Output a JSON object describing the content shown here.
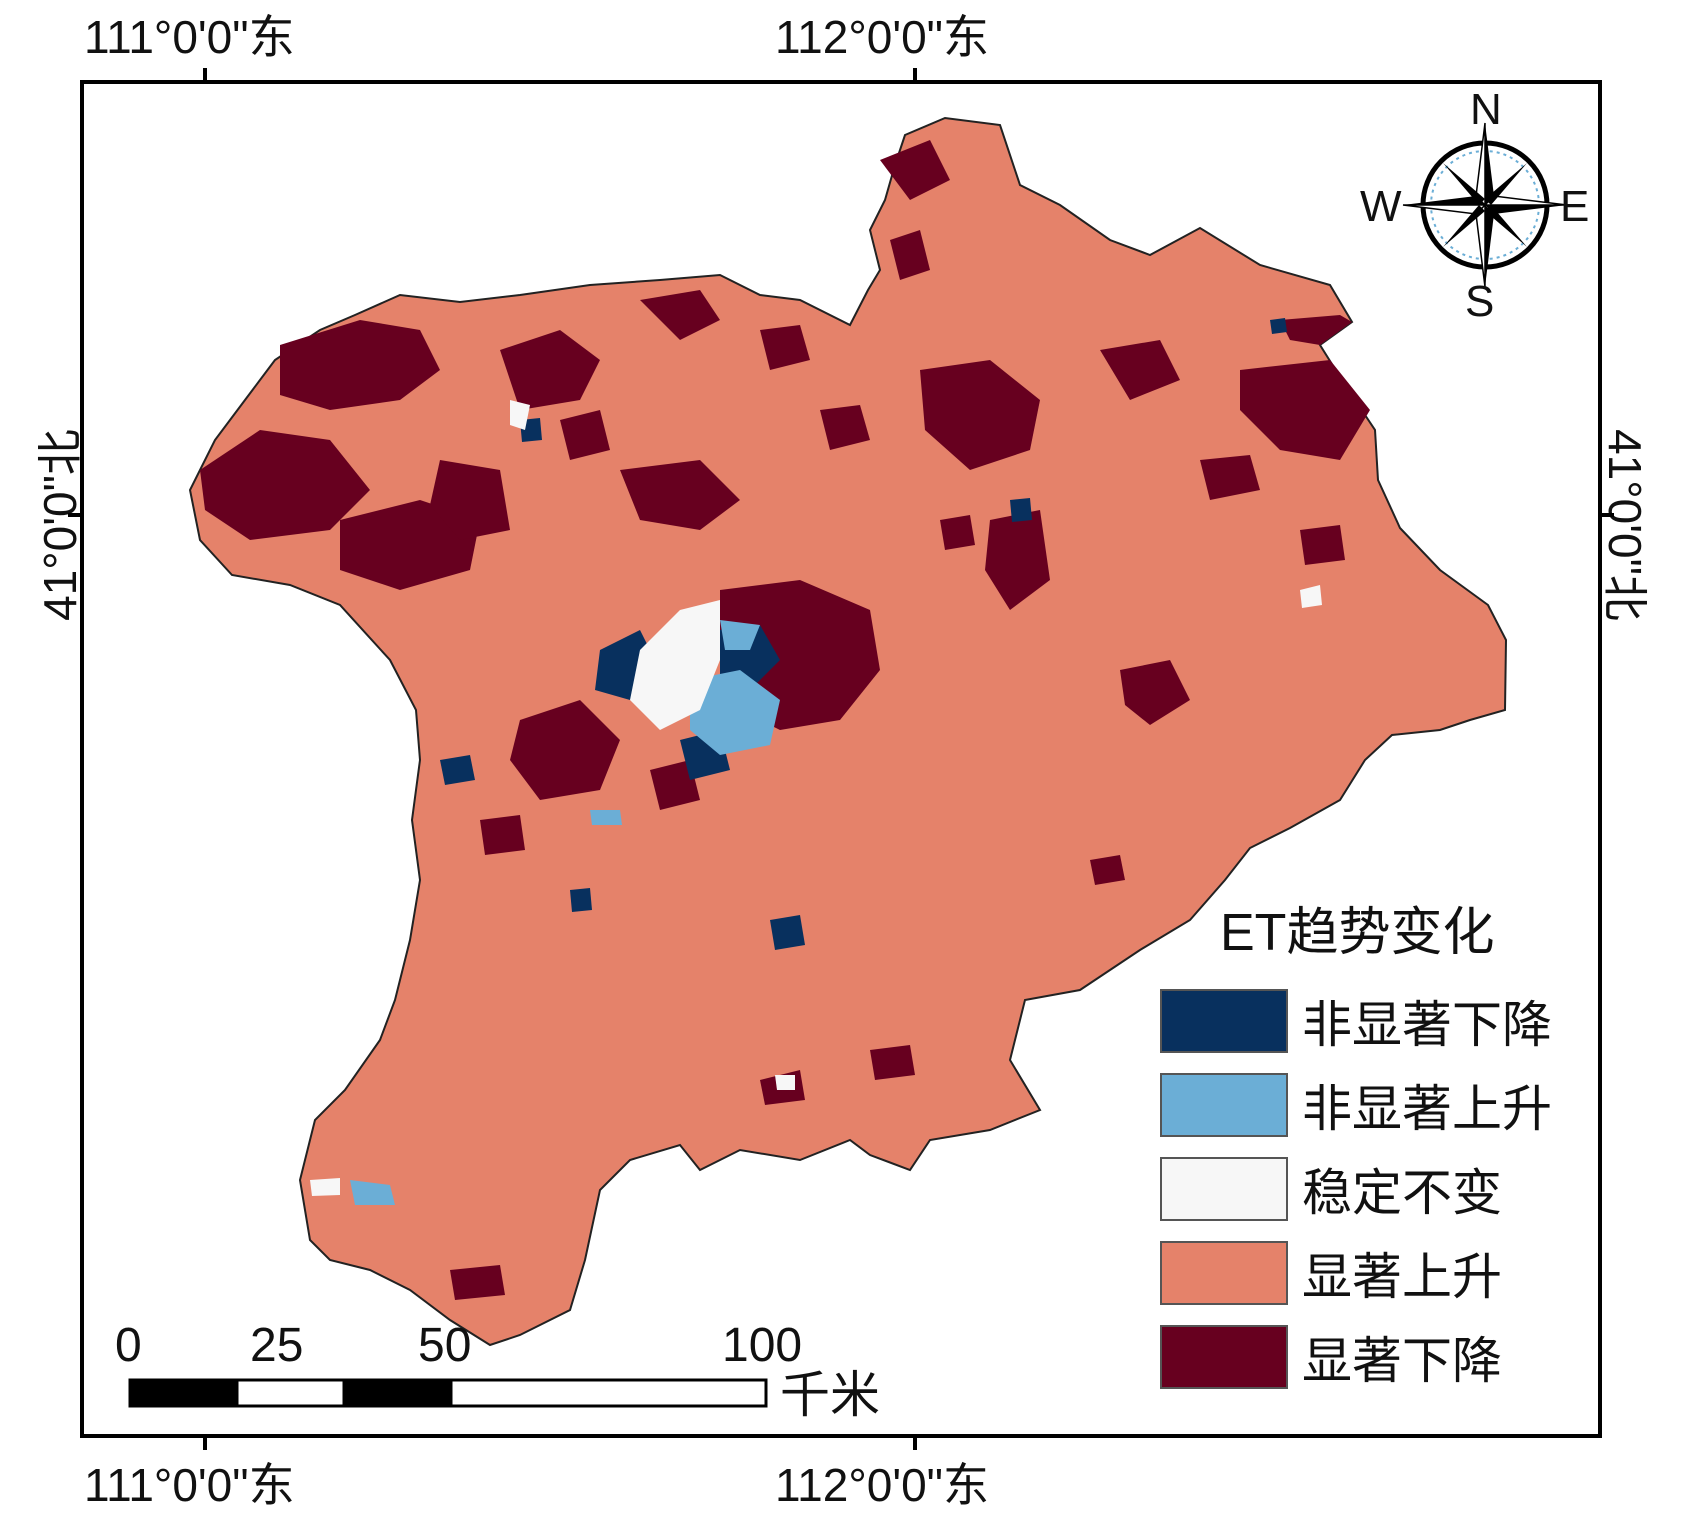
{
  "coordinates": {
    "top_left": "111°0'0\"东",
    "top_right": "112°0'0\"东",
    "bottom_left": "111°0'0\"东",
    "bottom_right": "112°0'0\"东",
    "left": "41°0'0\"北",
    "right": "41°0'0\"北"
  },
  "compass": {
    "north": "N",
    "south": "S",
    "east": "E",
    "west": "W"
  },
  "legend": {
    "title": "ET趋势变化",
    "items": [
      {
        "label": "非显著下降",
        "color": "#08305e"
      },
      {
        "label": "非显著上升",
        "color": "#6baed6"
      },
      {
        "label": "稳定不变",
        "color": "#f7f7f7"
      },
      {
        "label": "显著上升",
        "color": "#e5826a"
      },
      {
        "label": "显著下降",
        "color": "#67001f"
      }
    ]
  },
  "scale_bar": {
    "ticks": [
      "0",
      "25",
      "50",
      "100"
    ],
    "unit": "千米"
  },
  "colors": {
    "significant_increase": "#e5826a",
    "significant_decrease": "#67001f",
    "nonsig_decrease": "#08305e",
    "nonsig_increase": "#6baed6",
    "stable": "#f7f7f7"
  }
}
